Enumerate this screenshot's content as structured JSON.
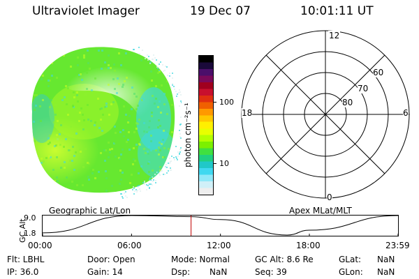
{
  "header": {
    "title": "Ultraviolet Imager",
    "date": "19 Dec 07",
    "time": "10:01:11 UT"
  },
  "colorbar": {
    "units": "photon cm⁻²s⁻¹",
    "tick_labels": [
      "100",
      "10"
    ],
    "colors": [
      "#000000",
      "#1a0a3a",
      "#4b0f6a",
      "#7a0a5a",
      "#a0001e",
      "#c8102e",
      "#e03010",
      "#f06000",
      "#ff9900",
      "#ffc800",
      "#fff000",
      "#e8ff00",
      "#b4ff00",
      "#7cf000",
      "#40e040",
      "#20d080",
      "#20c8c8",
      "#40d8f0",
      "#90e8f8",
      "#d0f0f8",
      "#eeeeee"
    ]
  },
  "polar": {
    "mlt_labels": {
      "top": "12",
      "left": "18",
      "right": "6",
      "bottom": "0"
    },
    "lat_labels": [
      "60",
      "70",
      "80"
    ]
  },
  "plot_labels": {
    "left": "Geographic Lat/Lon",
    "right": "Apex MLat/MLT"
  },
  "altplot": {
    "ylabel": "GC Alt",
    "y_ticks": [
      "9.0",
      "1.8"
    ],
    "x_ticks": [
      "00:00",
      "06:00",
      "12:00",
      "18:00",
      "23:59"
    ]
  },
  "chart_data": {
    "type": "line",
    "ylabel": "GC Alt",
    "x": [
      "00:00",
      "06:00",
      "10:01",
      "12:00",
      "16:30",
      "18:00",
      "23:59"
    ],
    "y": [
      2.6,
      9.0,
      8.6,
      7.5,
      1.8,
      3.6,
      9.0
    ],
    "ylim": [
      1.8,
      9.0
    ],
    "marker_time": "10:01"
  },
  "info": {
    "filter": "Flt: LBHL",
    "door": "Door: Open",
    "mode": "Mode: Normal",
    "gc_alt": "GC Alt: 8.6 Re",
    "glat": "GLat:",
    "glat_val": "NaN",
    "ip": "IP: 36.0",
    "gain": "Gain: 14",
    "dsp": "Dsp:",
    "dsp_val": "NaN",
    "seq": "Seq: 39",
    "glon": "GLon:",
    "glon_val": "NaN"
  },
  "image_colors": {
    "base": "#66e830",
    "bright": "#c8ff20",
    "dim": "#40d8e0",
    "glow": "#dff0f0"
  }
}
